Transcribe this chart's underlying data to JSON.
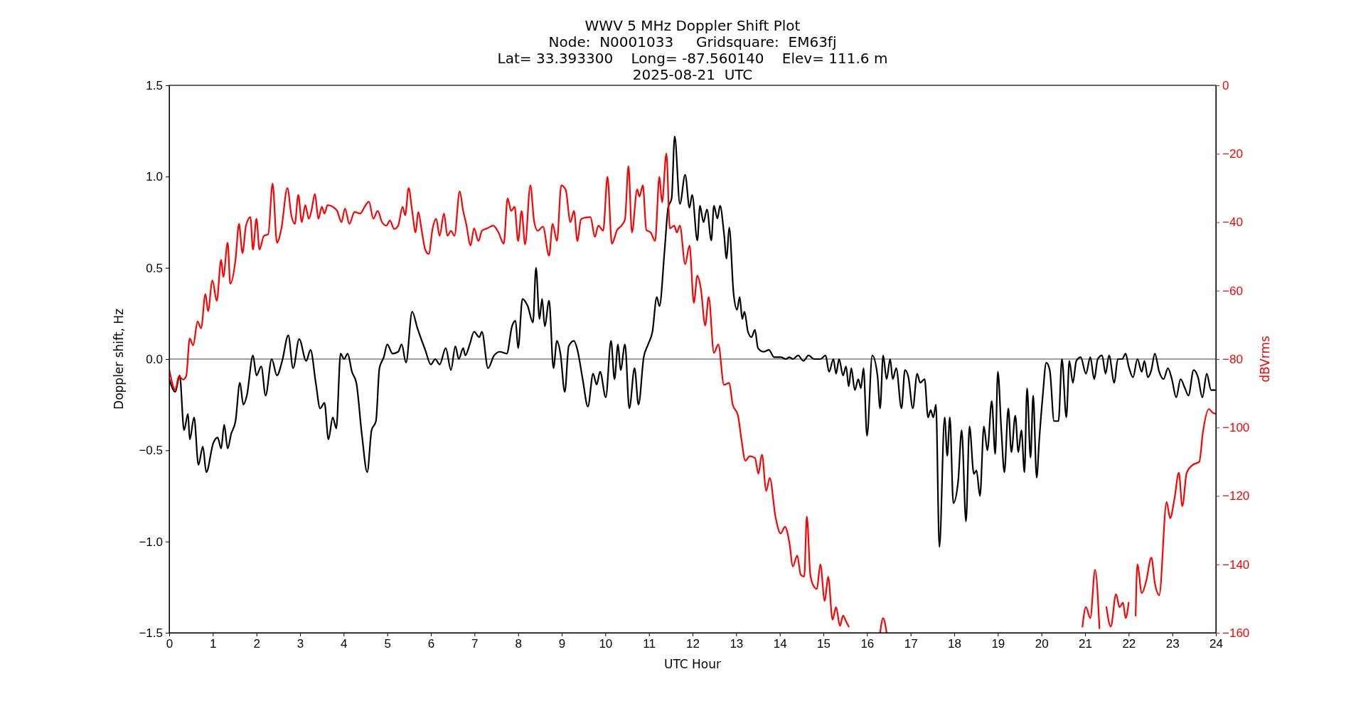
{
  "chart_data": {
    "type": "line",
    "title": "WWV 5 MHz Doppler Shift Plot\nNode:  N0001033     Gridsquare:  EM63fj\nLat= 33.393300    Long= -87.560140    Elev= 111.6 m\n2025-08-21  UTC",
    "xlabel": "UTC Hour",
    "ylabel": "Doppler shift, Hz",
    "y2label": "dBVrms",
    "xlim": [
      0,
      24
    ],
    "xticks": [
      0,
      1,
      2,
      3,
      4,
      5,
      6,
      7,
      8,
      9,
      10,
      11,
      12,
      13,
      14,
      15,
      16,
      17,
      18,
      19,
      20,
      21,
      22,
      23,
      24
    ],
    "ylim": [
      -1.5,
      1.5
    ],
    "yticks": [
      {
        "value": -1.5,
        "label": "−1.5"
      },
      {
        "value": -1,
        "label": "−1.0"
      },
      {
        "value": -0.5,
        "label": "−0.5"
      },
      {
        "value": 0,
        "label": "0.0"
      },
      {
        "value": 0.5,
        "label": "0.5"
      },
      {
        "value": 1,
        "label": "1.0"
      },
      {
        "value": 1.5,
        "label": "1.5"
      }
    ],
    "y2lim": [
      -160,
      0
    ],
    "y2ticks": [
      {
        "value": -160,
        "label": "−160"
      },
      {
        "value": -140,
        "label": "−140"
      },
      {
        "value": -120,
        "label": "−120"
      },
      {
        "value": -100,
        "label": "−100"
      },
      {
        "value": -80,
        "label": "−80"
      },
      {
        "value": -60,
        "label": "−60"
      },
      {
        "value": -40,
        "label": "−40"
      },
      {
        "value": -20,
        "label": "−20"
      },
      0
    ],
    "ref_lines": [
      {
        "axis": "y",
        "value": 0,
        "color": "#808080"
      }
    ],
    "grid": false,
    "marker": "none",
    "line_style": "solid",
    "series": [
      {
        "color": "#000000",
        "x": [
          0,
          0.14,
          0.24,
          0.34,
          0.43,
          0.47,
          0.57,
          0.67,
          0.77,
          0.85,
          1.01,
          1.11,
          1.19,
          1.26,
          1.34,
          1.42,
          1.52,
          1.62,
          1.7,
          1.78,
          1.92,
          2,
          2.11,
          2.21,
          2.35,
          2.47,
          2.59,
          2.73,
          2.84,
          2.98,
          3.14,
          3.24,
          3.36,
          3.46,
          3.56,
          3.65,
          3.75,
          3.83,
          3.93,
          4.01,
          4.09,
          4.19,
          4.29,
          4.42,
          4.54,
          4.64,
          4.74,
          4.82,
          4.92,
          5,
          5.12,
          5.25,
          5.33,
          5.43,
          5.57,
          5.69,
          5.87,
          6,
          6.1,
          6.2,
          6.34,
          6.46,
          6.56,
          6.64,
          6.74,
          6.79,
          6.89,
          6.99,
          7.11,
          7.17,
          7.31,
          7.45,
          7.58,
          7.74,
          7.86,
          7.94,
          8,
          8.1,
          8.22,
          8.34,
          8.41,
          8.49,
          8.55,
          8.61,
          8.71,
          8.81,
          8.89,
          8.97,
          9.07,
          9.16,
          9.28,
          9.36,
          9.48,
          9.6,
          9.72,
          9.8,
          9.88,
          10.01,
          10.13,
          10.21,
          10.29,
          10.35,
          10.45,
          10.55,
          10.67,
          10.76,
          10.88,
          10.98,
          11.08,
          11.18,
          11.24,
          11.36,
          11.44,
          11.52,
          11.59,
          11.71,
          11.83,
          11.93,
          11.99,
          12.11,
          12.17,
          12.25,
          12.33,
          12.43,
          12.49,
          12.57,
          12.63,
          12.72,
          12.78,
          12.84,
          12.94,
          13.02,
          13.08,
          13.14,
          13.19,
          13.27,
          13.35,
          13.43,
          13.5,
          13.63,
          13.75,
          13.87,
          14.02,
          14.14,
          14.22,
          14.3,
          14.42,
          14.54,
          14.66,
          14.79,
          14.93,
          15.05,
          15.13,
          15.23,
          15.29,
          15.36,
          15.45,
          15.52,
          15.58,
          15.64,
          15.72,
          15.8,
          15.86,
          15.92,
          16,
          16.12,
          16.24,
          16.3,
          16.37,
          16.45,
          16.53,
          16.59,
          16.67,
          16.79,
          16.87,
          16.95,
          17.05,
          17.15,
          17.22,
          17.32,
          17.4,
          17.46,
          17.52,
          17.58,
          17.66,
          17.78,
          17.84,
          17.9,
          17.98,
          18.09,
          18.17,
          18.27,
          18.35,
          18.45,
          18.51,
          18.59,
          18.68,
          18.76,
          18.86,
          18.94,
          19,
          19.08,
          19.15,
          19.24,
          19.31,
          19.4,
          19.47,
          19.54,
          19.61,
          19.67,
          19.75,
          19.81,
          19.89,
          19.95,
          20.03,
          20.11,
          20.19,
          20.29,
          20.39,
          20.47,
          20.57,
          20.64,
          20.72,
          20.8,
          20.9,
          21.02,
          21.12,
          21.21,
          21.29,
          21.39,
          21.47,
          21.55,
          21.67,
          21.75,
          21.85,
          21.93,
          22,
          22.1,
          22.2,
          22.3,
          22.36,
          22.44,
          22.52,
          22.6,
          22.7,
          22.8,
          22.9,
          22.99,
          23.09,
          23.19,
          23.29,
          23.37,
          23.49,
          23.59,
          23.69,
          23.79,
          23.89,
          23.98
        ],
        "values": [
          -0.11,
          -0.18,
          -0.09,
          -0.39,
          -0.3,
          -0.44,
          -0.32,
          -0.58,
          -0.48,
          -0.62,
          -0.46,
          -0.43,
          -0.49,
          -0.36,
          -0.49,
          -0.41,
          -0.34,
          -0.13,
          -0.25,
          -0.2,
          0.02,
          -0.09,
          -0.04,
          -0.2,
          0,
          -0.09,
          -0.01,
          0.13,
          -0.05,
          0.11,
          -0.01,
          0.05,
          -0.13,
          -0.27,
          -0.24,
          -0.44,
          -0.32,
          -0.38,
          0.03,
          0,
          0.03,
          -0.07,
          -0.13,
          -0.42,
          -0.62,
          -0.39,
          -0.34,
          -0.05,
          0.01,
          0.08,
          0.03,
          0.04,
          0.08,
          -0.02,
          0.26,
          0.17,
          0.05,
          -0.03,
          0,
          -0.03,
          0.06,
          -0.06,
          0.07,
          0,
          0.06,
          0.02,
          0.08,
          0.15,
          0.12,
          0.15,
          -0.05,
          0.02,
          0.04,
          0.03,
          0.18,
          0.21,
          0.06,
          0.33,
          0.29,
          0.2,
          0.5,
          0.22,
          0.33,
          0.18,
          0.32,
          -0.05,
          0.1,
          0.03,
          -0.18,
          0.07,
          0.1,
          0.05,
          -0.11,
          -0.26,
          -0.08,
          -0.14,
          -0.07,
          -0.21,
          0.1,
          -0.11,
          0.08,
          -0.06,
          0.08,
          -0.27,
          -0.05,
          -0.25,
          0.01,
          0.08,
          0.15,
          0.34,
          0.29,
          0.6,
          0.83,
          0.88,
          1.22,
          0.85,
          1.01,
          0.83,
          0.9,
          0.65,
          0.84,
          0.75,
          0.82,
          0.65,
          0.84,
          0.77,
          0.84,
          0.69,
          0.55,
          0.72,
          0.36,
          0.27,
          0.34,
          0.22,
          0.26,
          0.15,
          0.12,
          0.16,
          0.06,
          0.04,
          0.05,
          0.01,
          0.01,
          0,
          0.01,
          0,
          0.02,
          -0.01,
          0.02,
          0,
          0,
          0.02,
          -0.07,
          0,
          -0.08,
          0,
          -0.09,
          -0.04,
          -0.15,
          -0.05,
          -0.17,
          -0.11,
          -0.16,
          -0.05,
          -0.42,
          0.02,
          -0.09,
          -0.27,
          0.02,
          -0.11,
          0,
          -0.11,
          -0.05,
          -0.27,
          -0.06,
          -0.1,
          -0.27,
          -0.08,
          -0.13,
          -0.11,
          -0.32,
          -0.28,
          -0.32,
          -0.25,
          -1.03,
          -0.32,
          -0.53,
          -0.32,
          -0.79,
          -0.67,
          -0.39,
          -0.89,
          -0.37,
          -0.63,
          -0.61,
          -0.75,
          -0.37,
          -0.5,
          -0.23,
          -0.52,
          -0.07,
          -0.39,
          -0.62,
          -0.27,
          -0.51,
          -0.31,
          -0.51,
          -0.39,
          -0.62,
          -0.16,
          -0.54,
          -0.2,
          -0.65,
          -0.44,
          -0.2,
          -0.02,
          -0.06,
          -0.34,
          -0.34,
          0,
          -0.32,
          -0.01,
          -0.13,
          -0.01,
          0.01,
          -0.08,
          0.01,
          -0.11,
          0,
          0.02,
          -0.08,
          0.02,
          -0.13,
          0,
          0,
          0.03,
          -0.04,
          -0.1,
          0,
          -0.07,
          -0.01,
          -0.1,
          -0.06,
          0.03,
          -0.07,
          -0.11,
          -0.05,
          -0.11,
          -0.21,
          -0.11,
          -0.16,
          -0.2,
          -0.06,
          -0.1,
          -0.21,
          -0.08,
          -0.17,
          -0.17
        ]
      },
      {
        "color": "#ff0000",
        "axis": "y2",
        "x": [
          0,
          0.14,
          0.22,
          0.32,
          0.39,
          0.47,
          0.55,
          0.65,
          0.73,
          0.83,
          0.89,
          0.99,
          1.09,
          1.19,
          1.24,
          1.34,
          1.4,
          1.52,
          1.6,
          1.68,
          1.76,
          1.86,
          1.92,
          2,
          2.07,
          2.17,
          2.27,
          2.37,
          2.47,
          2.57,
          2.71,
          2.8,
          2.88,
          2.96,
          3.04,
          3.12,
          3.2,
          3.26,
          3.34,
          3.42,
          3.5,
          3.56,
          3.63,
          3.75,
          3.85,
          3.95,
          4.03,
          4.13,
          4.25,
          4.38,
          4.48,
          4.58,
          4.68,
          4.78,
          4.88,
          4.98,
          5.06,
          5.16,
          5.25,
          5.35,
          5.41,
          5.49,
          5.57,
          5.65,
          5.71,
          5.79,
          5.87,
          5.95,
          6.04,
          6.12,
          6.2,
          6.3,
          6.38,
          6.46,
          6.54,
          6.66,
          6.74,
          6.81,
          6.91,
          6.99,
          7.09,
          7.17,
          7.29,
          7.43,
          7.55,
          7.67,
          7.76,
          7.84,
          7.92,
          8,
          8.08,
          8.16,
          8.28,
          8.37,
          8.45,
          8.57,
          8.71,
          8.79,
          8.89,
          8.99,
          9.09,
          9.2,
          9.28,
          9.36,
          9.44,
          9.52,
          9.66,
          9.76,
          9.84,
          9.95,
          10.05,
          10.15,
          10.27,
          10.37,
          10.45,
          10.53,
          10.61,
          10.73,
          10.78,
          10.86,
          10.94,
          11.04,
          11.14,
          11.24,
          11.3,
          11.4,
          11.48,
          11.58,
          11.64,
          11.71,
          11.83,
          11.93,
          12.03,
          12.11,
          12.19,
          12.29,
          12.37,
          12.49,
          12.59,
          12.72,
          12.84,
          12.92,
          13.04,
          13.12,
          13.21,
          13.31,
          13.43,
          13.51,
          13.59,
          13.69,
          13.77,
          13.9,
          14.02,
          14.12,
          14.22,
          14.3,
          14.4,
          14.48,
          14.56,
          14.62,
          14.7,
          14.77,
          14.85,
          14.93,
          15.03,
          15.11,
          15.21,
          15.29,
          15.38,
          15.45,
          15.52,
          15.58,
          15.7,
          16.3,
          16.37,
          16.45,
          20.85,
          20.94,
          21.02,
          21.12,
          21.23,
          21.33,
          21.4,
          21.49,
          21.59,
          21.71,
          21.79,
          21.87,
          21.93,
          22,
          22.06,
          22.16,
          22.2,
          22.3,
          22.4,
          22.52,
          22.6,
          22.7,
          22.87,
          22.95,
          23.05,
          23.15,
          23.23,
          23.33,
          23.46,
          23.62,
          23.7,
          23.84,
          23.92,
          24
        ],
        "values": [
          -83,
          -89,
          -85,
          -86,
          -85,
          -74,
          -76,
          -69,
          -71,
          -61,
          -66,
          -57,
          -63,
          -51,
          -56,
          -46,
          -58,
          -51,
          -40.5,
          -49,
          -41,
          -38.5,
          -48,
          -39,
          -48,
          -44,
          -43.5,
          -28.7,
          -46,
          -42,
          -30,
          -38,
          -40.5,
          -32,
          -40,
          -35,
          -39,
          -36.7,
          -31.7,
          -39,
          -35.5,
          -37.5,
          -35,
          -35.5,
          -36.7,
          -40,
          -36,
          -40.5,
          -37,
          -37.5,
          -35.5,
          -34,
          -39,
          -36.7,
          -40,
          -41,
          -39.5,
          -42,
          -41,
          -35.5,
          -38,
          -30,
          -36.7,
          -43,
          -37,
          -42.5,
          -48,
          -49.3,
          -41.8,
          -39,
          -44,
          -37.5,
          -44,
          -42.5,
          -44,
          -31,
          -36.7,
          -40.5,
          -46.8,
          -41.8,
          -45.5,
          -42.5,
          -41.8,
          -41,
          -43,
          -46.3,
          -33,
          -36.7,
          -35.5,
          -45.5,
          -36.7,
          -46.5,
          -29.2,
          -40,
          -42.5,
          -41.3,
          -49.8,
          -40.5,
          -45.5,
          -29.2,
          -30.5,
          -40,
          -36.7,
          -45.5,
          -39.2,
          -38.7,
          -38.5,
          -44.3,
          -41,
          -42.5,
          -26.7,
          -46.3,
          -42.3,
          -41,
          -39.2,
          -23.6,
          -43,
          -30.4,
          -32.5,
          -29.2,
          -42.3,
          -43,
          -45.5,
          -26.7,
          -34.2,
          -19.9,
          -41.8,
          -41,
          -43,
          -41,
          -52.3,
          -46.8,
          -63.6,
          -55.6,
          -59.4,
          -70.2,
          -61.9,
          -78.2,
          -75.7,
          -87.5,
          -87,
          -93.3,
          -96.4,
          -103.4,
          -109.7,
          -108.4,
          -108.9,
          -113.5,
          -107.9,
          -118.5,
          -114.7,
          -126,
          -131,
          -129,
          -133.6,
          -140.6,
          -137.4,
          -143,
          -143.6,
          -126,
          -143,
          -146.2,
          -147.2,
          -140,
          -150.7,
          -143.6,
          -156.2,
          -152.5,
          -158,
          -155,
          -156.7,
          -158.2,
          null,
          -160,
          -155.7,
          -160,
          null,
          -158.2,
          -152.5,
          -155.7,
          -141.6,
          -158.7,
          null,
          -152.5,
          -158.2,
          -148.7,
          -152.5,
          -151.2,
          -155.7,
          -151.2,
          null,
          -155,
          -140,
          -148.4,
          -145,
          -138,
          -145.4,
          -149,
          -121.8,
          -126.5,
          -120.8,
          -113.2,
          -123,
          -113.2,
          -111,
          -110,
          -101.6,
          -94.6,
          -95.6,
          -96
        ]
      }
    ]
  }
}
